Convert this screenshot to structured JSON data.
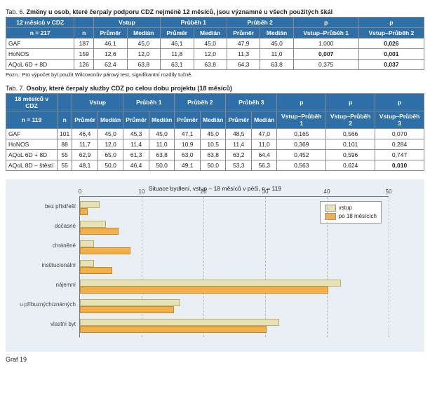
{
  "table6": {
    "caption_prefix": "Tab. 6. ",
    "caption_bold": "Změny u osob, které čerpaly podporu CDZ nejméně 12 měsíců, jsou významné u všech použitých škál",
    "top_left": "12 měsíců v CDZ",
    "n_header": "n = 217",
    "col_n": "n",
    "groups": [
      "Vstup",
      "Průběh 1",
      "Průběh 2"
    ],
    "sub": [
      "Průměr",
      "Medián"
    ],
    "pcols": [
      "p",
      "p"
    ],
    "psub": [
      "Vstup–Průběh 1",
      "Vstup–Průběh 2"
    ],
    "rows": [
      {
        "label": "GAF",
        "n": "187",
        "v": [
          "46,1",
          "45,0",
          "46,1",
          "45,0",
          "47,9",
          "45,0"
        ],
        "p": [
          "1,000",
          "0,026"
        ],
        "bold": [
          false,
          true
        ]
      },
      {
        "label": "HoNOS",
        "n": "159",
        "v": [
          "12,6",
          "12,0",
          "11,8",
          "12,0",
          "11,3",
          "11,0"
        ],
        "p": [
          "0,007",
          "0,001"
        ],
        "bold": [
          true,
          true
        ]
      },
      {
        "label": "AQoL 6D + 8D",
        "n": "126",
        "v": [
          "62,4",
          "63,8",
          "63,1",
          "63,8",
          "64,3",
          "63,8"
        ],
        "p": [
          "0,375",
          "0,037"
        ],
        "bold": [
          false,
          true
        ]
      }
    ],
    "footnote": "Pozn.: Pro výpočet byl použit Wilcoxonův párový test, signifikantní rozdíly tučně."
  },
  "table7": {
    "caption_prefix": "Tab. 7. ",
    "caption_bold": "Osoby, které čerpaly služby CDZ po celou dobu projektu (18 měsíců)",
    "top_left": "18 měsíců v CDZ",
    "n_header": "n = 119",
    "col_n": "n",
    "groups": [
      "Vstup",
      "Průběh 1",
      "Průběh 2",
      "Průběh 3"
    ],
    "sub": [
      "Průměr",
      "Medián"
    ],
    "pcols": [
      "p",
      "p",
      "p"
    ],
    "psub": [
      "Vstup–Průběh 1",
      "Vstup–Průběh 2",
      "Vstup–Průběh 3"
    ],
    "rows": [
      {
        "label": "GAF",
        "n": "101",
        "v": [
          "46,4",
          "45,0",
          "45,3",
          "45,0",
          "47,1",
          "45,0",
          "48,5",
          "47,0"
        ],
        "p": [
          "0,165",
          "0,566",
          "0,070"
        ],
        "bold": [
          false,
          false,
          false
        ]
      },
      {
        "label": "HoNOS",
        "n": "88",
        "v": [
          "11,7",
          "12,0",
          "11,4",
          "11,0",
          "10,9",
          "10,5",
          "11,4",
          "11,0"
        ],
        "p": [
          "0,369",
          "0,101",
          "0,284"
        ],
        "bold": [
          false,
          false,
          false
        ]
      },
      {
        "label": "AQoL 6D + 8D",
        "n": "55",
        "v": [
          "62,9",
          "65,0",
          "61,3",
          "63,8",
          "63,0",
          "63,8",
          "63,2",
          "64,4"
        ],
        "p": [
          "0,452",
          "0,596",
          "0,747"
        ],
        "bold": [
          false,
          false,
          false
        ]
      },
      {
        "label": "AQoL 8D – štěstí",
        "n": "55",
        "v": [
          "48,1",
          "50,0",
          "46,4",
          "50,0",
          "49,1",
          "50,0",
          "53,3",
          "56,3"
        ],
        "p": [
          "0,563",
          "0,624",
          "0,010"
        ],
        "bold": [
          false,
          false,
          true
        ]
      }
    ]
  },
  "chart": {
    "title": "Situace bydlení, vstup – 18 měsíců v péči, n = 119",
    "xmax": 50,
    "xticks": [
      0,
      10,
      20,
      30,
      40,
      50
    ],
    "legend": {
      "a": "vstup",
      "b": "po 18 měsících"
    },
    "categories": [
      {
        "label": "bez přístřeší",
        "a": 3,
        "b": 1
      },
      {
        "label": "dočasné",
        "a": 4,
        "b": 6
      },
      {
        "label": "chráněné",
        "a": 2,
        "b": 8
      },
      {
        "label": "institucionální",
        "a": 2,
        "b": 5
      },
      {
        "label": "nájemní",
        "a": 42,
        "b": 40
      },
      {
        "label": "u příbuzných/známých",
        "a": 16,
        "b": 15
      },
      {
        "label": "vlastní byt",
        "a": 32,
        "b": 30
      }
    ],
    "graf_label": "Graf 19"
  }
}
